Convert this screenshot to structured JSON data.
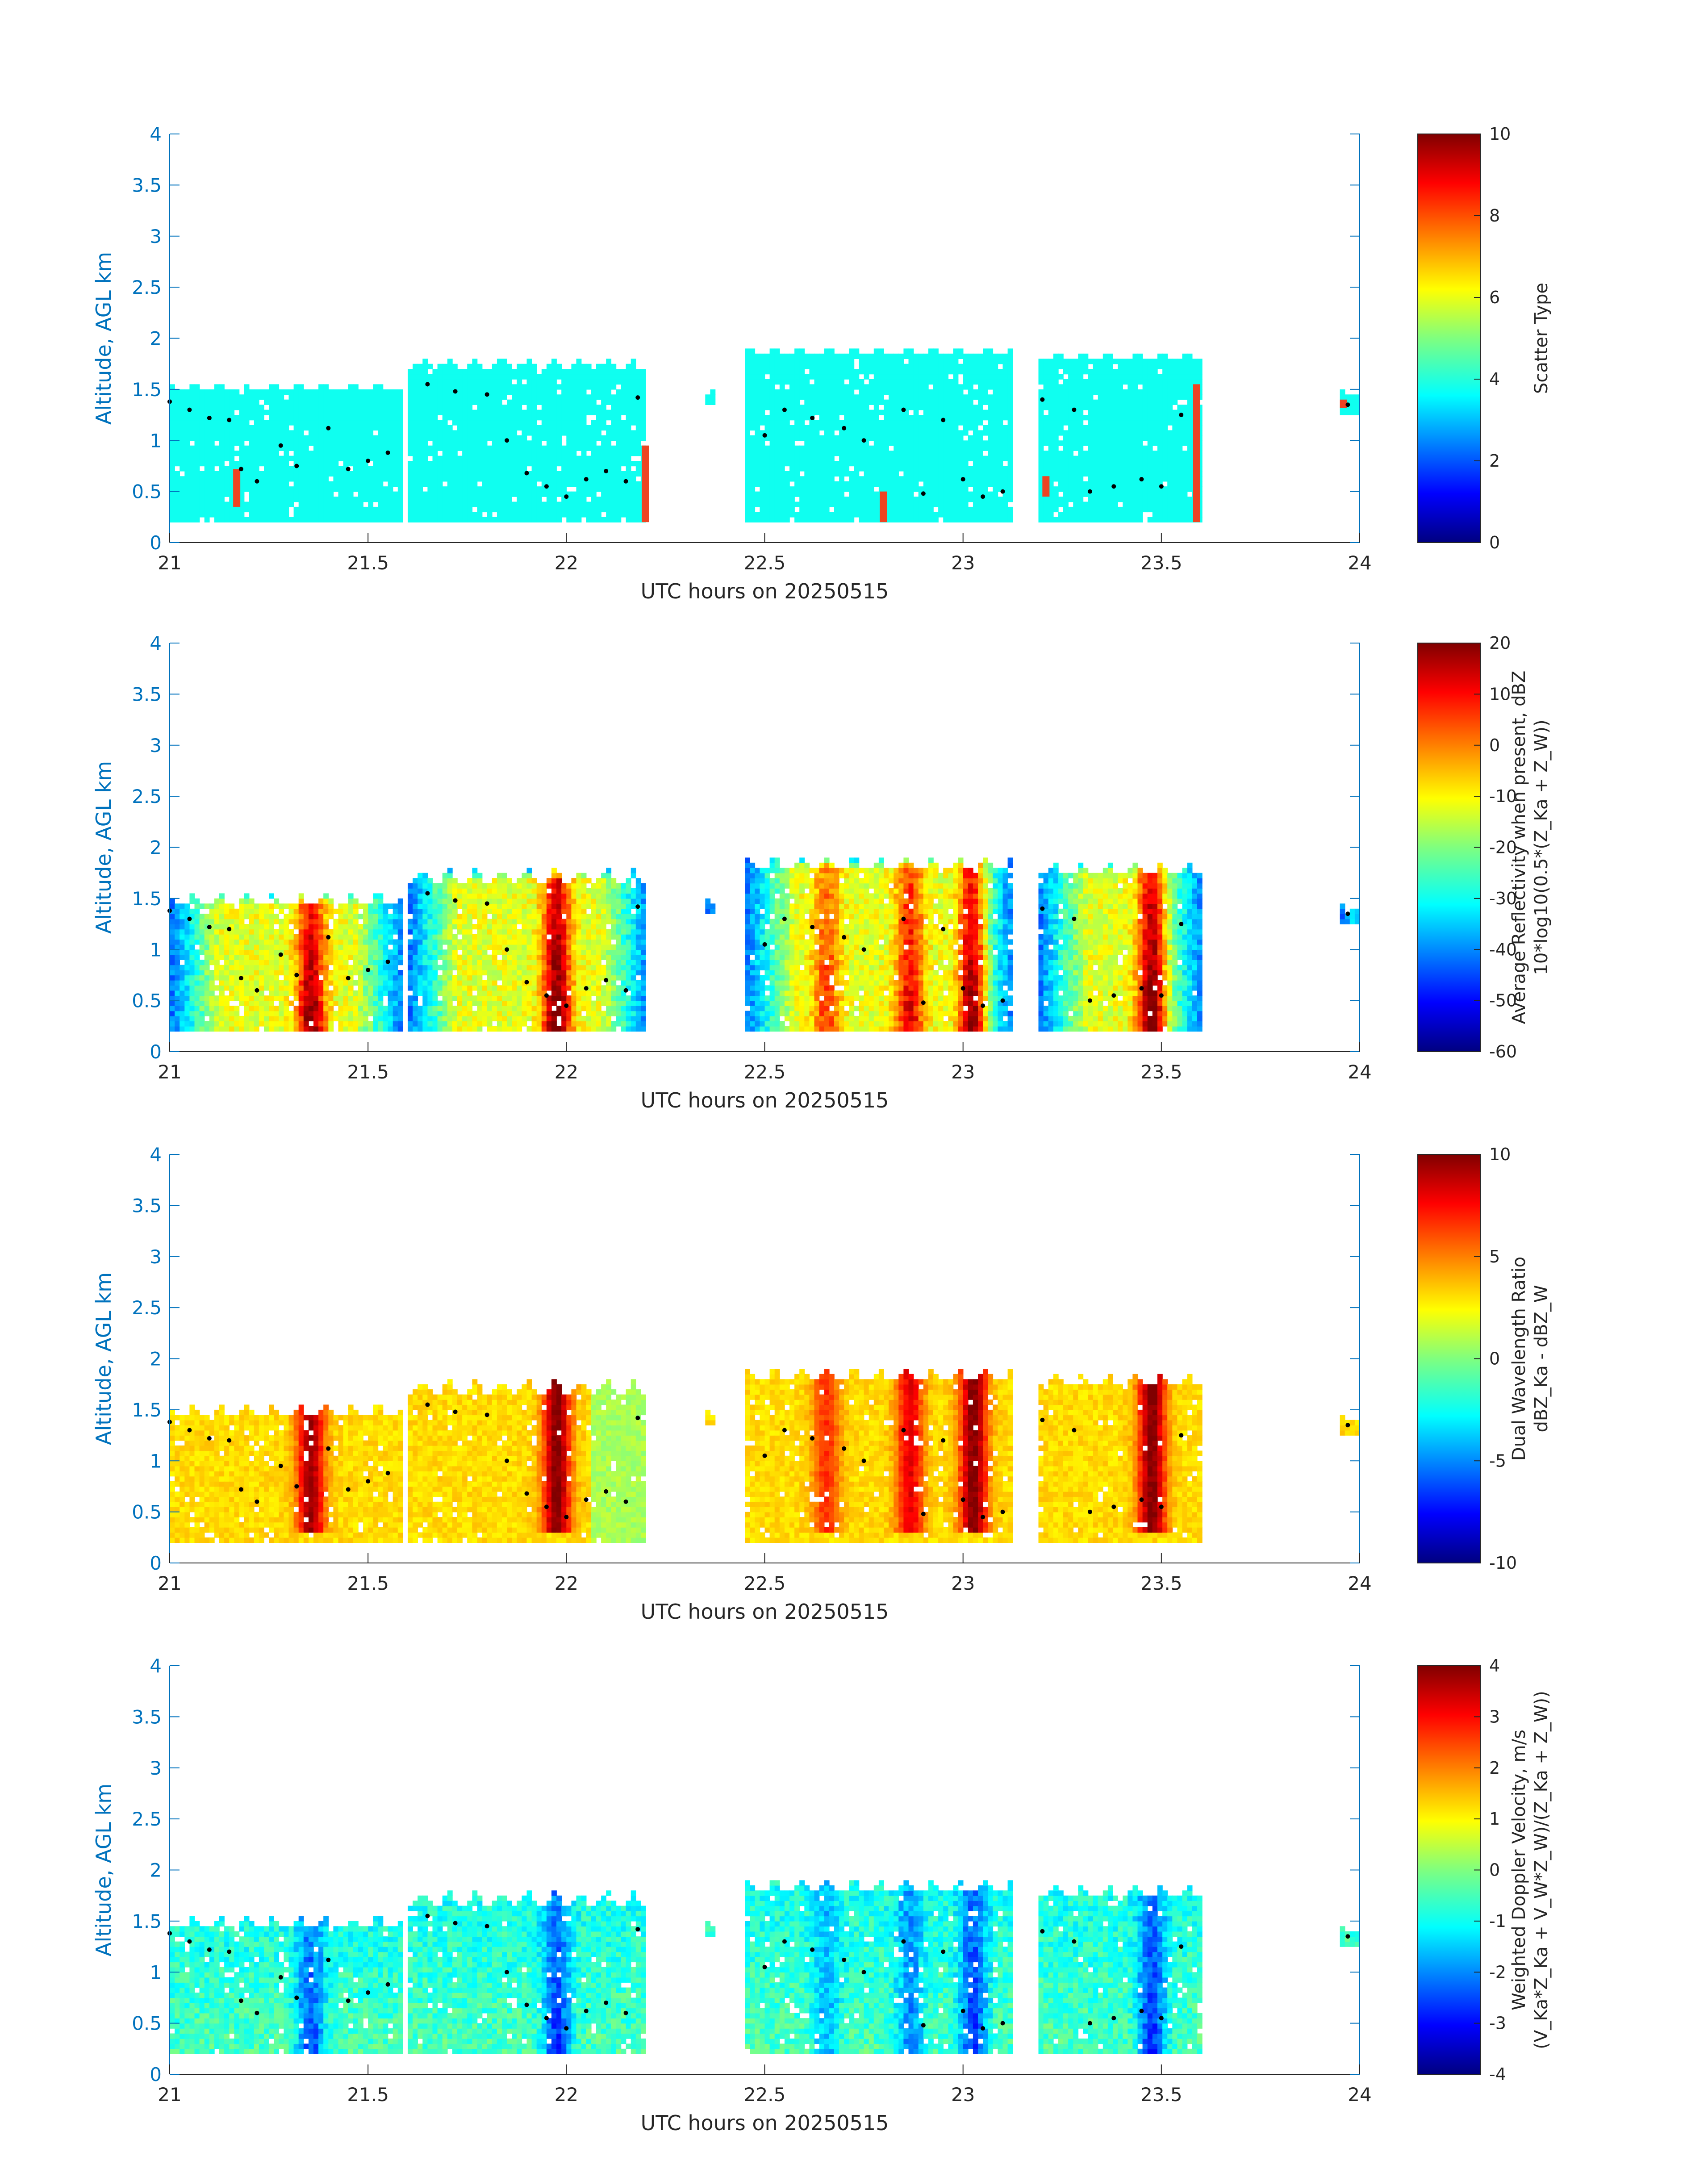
{
  "chart_data": [
    {
      "type": "heatmap",
      "panel": "scatter-type",
      "xlabel": "UTC hours on 20250515",
      "ylabel": "Altitude, AGL km",
      "xlim": [
        21,
        24
      ],
      "ylim": [
        0,
        4
      ],
      "xticks": [
        "21",
        "21.5",
        "22",
        "22.5",
        "23",
        "23.5",
        "24"
      ],
      "yticks": [
        "0",
        "0.5",
        "1",
        "1.5",
        "2",
        "2.5",
        "3",
        "3.5",
        "4"
      ],
      "colorbar": {
        "label_lines": [
          "Scatter Type"
        ],
        "range": [
          0,
          10
        ],
        "ticks": [
          "0",
          "2",
          "4",
          "6",
          "8",
          "10"
        ]
      }
    },
    {
      "type": "heatmap",
      "panel": "reflectivity",
      "xlabel": "UTC hours on 20250515",
      "ylabel": "Altitude, AGL km",
      "xlim": [
        21,
        24
      ],
      "ylim": [
        0,
        4
      ],
      "xticks": [
        "21",
        "21.5",
        "22",
        "22.5",
        "23",
        "23.5",
        "24"
      ],
      "yticks": [
        "0",
        "0.5",
        "1",
        "1.5",
        "2",
        "2.5",
        "3",
        "3.5",
        "4"
      ],
      "colorbar": {
        "label_lines": [
          "Average Reflectivity when present, dBZ",
          "10*log10(0.5*(Z_Ka + Z_W))"
        ],
        "range": [
          -60,
          20
        ],
        "ticks": [
          "-60",
          "-50",
          "-40",
          "-30",
          "-20",
          "-10",
          "0",
          "10",
          "20"
        ]
      }
    },
    {
      "type": "heatmap",
      "panel": "dwr",
      "xlabel": "UTC hours on 20250515",
      "ylabel": "Altitude, AGL km",
      "xlim": [
        21,
        24
      ],
      "ylim": [
        0,
        4
      ],
      "xticks": [
        "21",
        "21.5",
        "22",
        "22.5",
        "23",
        "23.5",
        "24"
      ],
      "yticks": [
        "0",
        "0.5",
        "1",
        "1.5",
        "2",
        "2.5",
        "3",
        "3.5",
        "4"
      ],
      "colorbar": {
        "label_lines": [
          "Dual Wavelength Ratio",
          "dBZ_Ka - dBZ_W"
        ],
        "range": [
          -10,
          10
        ],
        "ticks": [
          "-10",
          "-5",
          "0",
          "5",
          "10"
        ]
      }
    },
    {
      "type": "heatmap",
      "panel": "doppler",
      "xlabel": "UTC hours on 20250515",
      "ylabel": "Altitude, AGL km",
      "xlim": [
        21,
        24
      ],
      "ylim": [
        0,
        4
      ],
      "xticks": [
        "21",
        "21.5",
        "22",
        "22.5",
        "23",
        "23.5",
        "24"
      ],
      "yticks": [
        "0",
        "0.5",
        "1",
        "1.5",
        "2",
        "2.5",
        "3",
        "3.5",
        "4"
      ],
      "colorbar": {
        "label_lines": [
          "Weighted Doppler Velocity, m/s",
          "(V_Ka*Z_Ka + V_W*Z_W)/(Z_Ka + Z_W))"
        ],
        "range": [
          -4,
          4
        ],
        "ticks": [
          "-4",
          "-3",
          "-2",
          "-1",
          "0",
          "1",
          "2",
          "3",
          "4"
        ]
      }
    }
  ],
  "cloud_segments": [
    {
      "t0": 21.0,
      "t1": 21.58,
      "base": 0.2,
      "top": 1.55
    },
    {
      "t0": 21.6,
      "t1": 22.2,
      "base": 0.2,
      "top": 1.78
    },
    {
      "t0": 22.35,
      "t1": 22.37,
      "base": 1.35,
      "top": 1.55
    },
    {
      "t0": 22.45,
      "t1": 23.12,
      "base": 0.2,
      "top": 1.9
    },
    {
      "t0": 23.19,
      "t1": 23.6,
      "base": 0.2,
      "top": 1.85
    },
    {
      "t0": 23.95,
      "t1": 24.0,
      "base": 1.25,
      "top": 1.5
    }
  ],
  "cloud_base_points": [
    [
      21.0,
      1.38
    ],
    [
      21.05,
      1.3
    ],
    [
      21.1,
      1.22
    ],
    [
      21.15,
      1.2
    ],
    [
      21.18,
      0.72
    ],
    [
      21.22,
      0.6
    ],
    [
      21.28,
      0.95
    ],
    [
      21.32,
      0.75
    ],
    [
      21.4,
      1.12
    ],
    [
      21.45,
      0.72
    ],
    [
      21.5,
      0.8
    ],
    [
      21.55,
      0.88
    ],
    [
      21.65,
      1.55
    ],
    [
      21.72,
      1.48
    ],
    [
      21.8,
      1.45
    ],
    [
      21.85,
      1.0
    ],
    [
      21.9,
      0.68
    ],
    [
      21.95,
      0.55
    ],
    [
      22.0,
      0.45
    ],
    [
      22.05,
      0.62
    ],
    [
      22.1,
      0.7
    ],
    [
      22.15,
      0.6
    ],
    [
      22.18,
      1.42
    ],
    [
      22.5,
      1.05
    ],
    [
      22.55,
      1.3
    ],
    [
      22.62,
      1.22
    ],
    [
      22.7,
      1.12
    ],
    [
      22.75,
      1.0
    ],
    [
      22.85,
      1.3
    ],
    [
      22.9,
      0.48
    ],
    [
      22.95,
      1.2
    ],
    [
      23.0,
      0.62
    ],
    [
      23.05,
      0.45
    ],
    [
      23.1,
      0.5
    ],
    [
      23.2,
      1.4
    ],
    [
      23.28,
      1.3
    ],
    [
      23.32,
      0.5
    ],
    [
      23.38,
      0.55
    ],
    [
      23.45,
      0.62
    ],
    [
      23.5,
      0.55
    ],
    [
      23.55,
      1.25
    ],
    [
      23.97,
      1.35
    ]
  ]
}
